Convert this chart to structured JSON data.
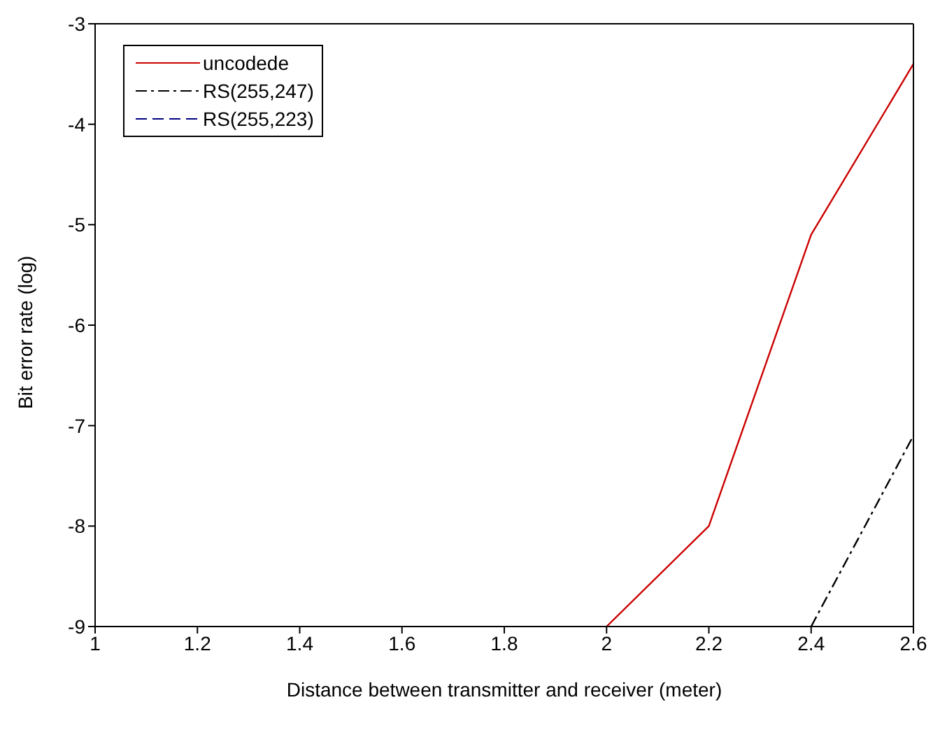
{
  "chart_data": {
    "type": "line",
    "xlabel": "Distance between transmitter and receiver (meter)",
    "ylabel": "Bit error rate (log)",
    "series": [
      {
        "name": "uncodede",
        "color": "#cc0000",
        "line_style": "solid",
        "x": [
          2,
          2.2,
          2.4,
          2.6
        ],
        "values": [
          -9,
          -8,
          -5.1,
          -3.4
        ]
      },
      {
        "name": "RS(255,247)",
        "color": "#000000",
        "line_style": "dashdot",
        "x": [
          2.4,
          2.6
        ],
        "values": [
          -9,
          -7.1
        ]
      },
      {
        "name": "RS(255,223)",
        "color": "#000080",
        "line_style": "dashed"
      }
    ],
    "xlim": [
      1,
      2.6
    ],
    "xticks": [
      1,
      1.2,
      1.4,
      1.6,
      1.8,
      2,
      2.2,
      2.4,
      2.6
    ],
    "ylim": [
      -9,
      -3
    ],
    "yticks": [
      -9,
      -8,
      -7,
      -6,
      -5,
      -4,
      -3
    ],
    "grid": false,
    "legend": "top left",
    "marker": "none"
  }
}
